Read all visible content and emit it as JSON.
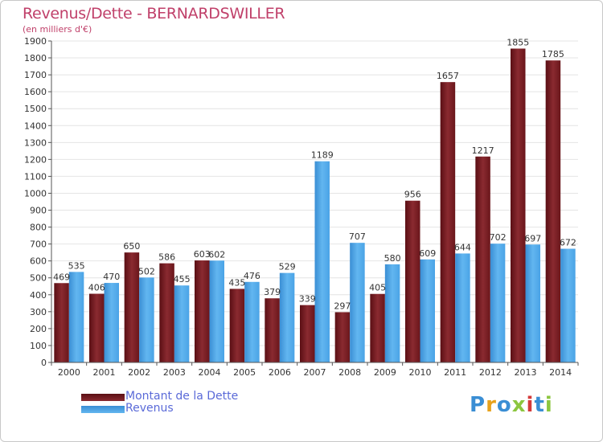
{
  "title": "Revenus/Dette - BERNARDSWILLER",
  "subtitle": "(en milliers d'€)",
  "brand": "Proxiti",
  "colors": {
    "dette": "#7a1f24",
    "revenus": "#4aa3e6",
    "title": "#c0406a",
    "legend_text": "#5a6ad8"
  },
  "chart_data": {
    "type": "bar",
    "title": "Revenus/Dette - BERNARDSWILLER",
    "subtitle": "(en milliers d'€)",
    "xlabel": "",
    "ylabel": "",
    "ylim": [
      0,
      1900
    ],
    "y_ticks": [
      0,
      100,
      200,
      300,
      400,
      500,
      600,
      700,
      800,
      900,
      1000,
      1100,
      1200,
      1300,
      1400,
      1500,
      1600,
      1700,
      1800,
      1900
    ],
    "grid": true,
    "legend_position": "bottom-left",
    "categories": [
      "2000",
      "2001",
      "2002",
      "2003",
      "2004",
      "2005",
      "2006",
      "2007",
      "2008",
      "2009",
      "2010",
      "2011",
      "2012",
      "2013",
      "2014"
    ],
    "series": [
      {
        "name": "Montant de la Dette",
        "color": "#7a1f24",
        "values": [
          469,
          406,
          650,
          586,
          603,
          435,
          379,
          339,
          297,
          405,
          956,
          1657,
          1217,
          1855,
          1785
        ]
      },
      {
        "name": "Revenus",
        "color": "#4aa3e6",
        "values": [
          535,
          470,
          502,
          455,
          602,
          476,
          529,
          1189,
          707,
          580,
          609,
          644,
          702,
          697,
          672
        ]
      }
    ]
  }
}
